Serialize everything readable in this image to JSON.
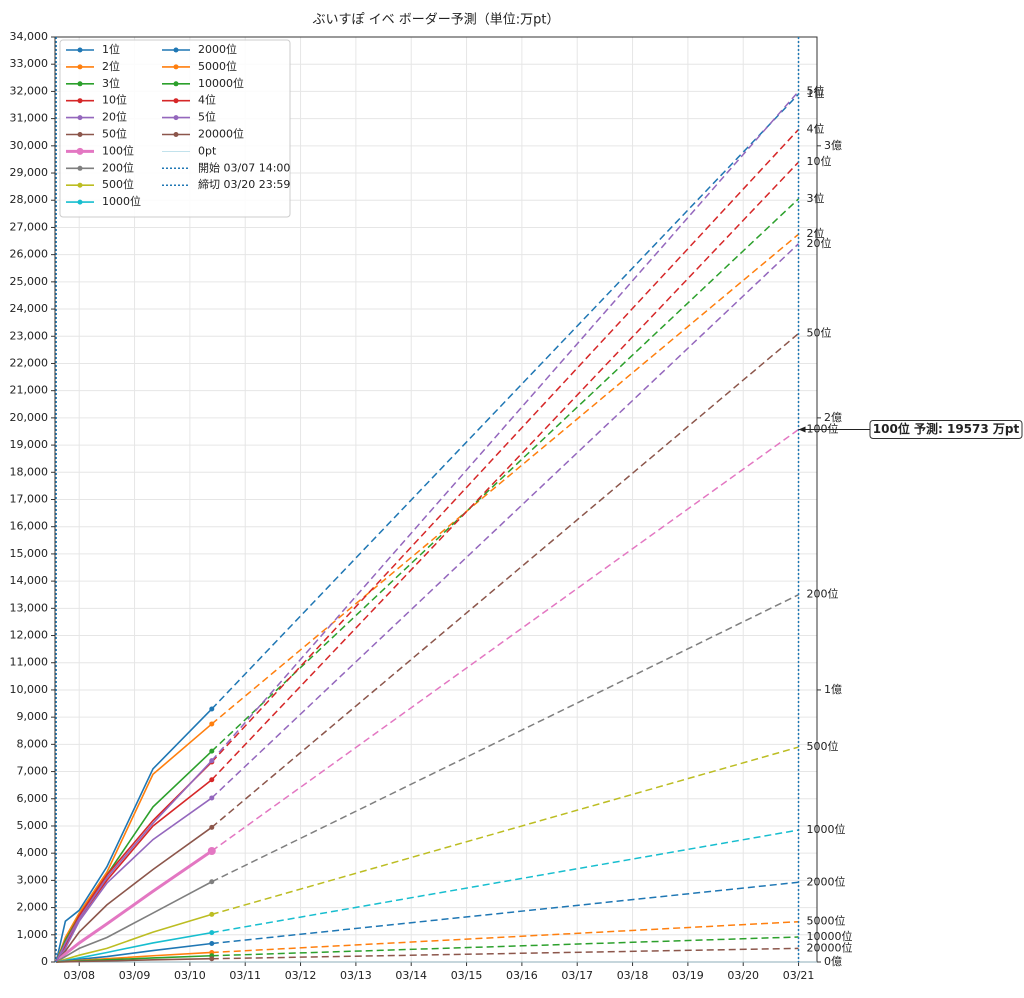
{
  "chart_data": {
    "type": "line",
    "title": "ぶいすぽ イベ ボーダー予測（単位:万pt）",
    "x": [
      "03/07 14:00",
      "03/07 18:00",
      "03/08 00:00",
      "03/08 12:00",
      "03/09 08:00",
      "03/10 09:30"
    ],
    "forecast_x": "03/20 23:59",
    "xlim": [
      "03/07 13:30",
      "03/21 08:00"
    ],
    "xticks": [
      "03/08",
      "03/09",
      "03/10",
      "03/11",
      "03/12",
      "03/13",
      "03/14",
      "03/15",
      "03/16",
      "03/17",
      "03/18",
      "03/19",
      "03/20",
      "03/21"
    ],
    "ylim": [
      0,
      34000
    ],
    "yticks": [
      0,
      {
        "value": 1000,
        "label": "1,000"
      },
      {
        "value": 2000,
        "label": "2,000"
      },
      {
        "value": 3000,
        "label": "3,000"
      },
      {
        "value": 4000,
        "label": "4,000"
      },
      {
        "value": 5000,
        "label": "5,000"
      },
      {
        "value": 6000,
        "label": "6,000"
      },
      {
        "value": 7000,
        "label": "7,000"
      },
      {
        "value": 8000,
        "label": "8,000"
      },
      {
        "value": 9000,
        "label": "9,000"
      },
      {
        "value": 10000,
        "label": "10,000"
      },
      {
        "value": 11000,
        "label": "11,000"
      },
      {
        "value": 12000,
        "label": "12,000"
      },
      {
        "value": 13000,
        "label": "13,000"
      },
      {
        "value": 14000,
        "label": "14,000"
      },
      {
        "value": 15000,
        "label": "15,000"
      },
      {
        "value": 16000,
        "label": "16,000"
      },
      {
        "value": 17000,
        "label": "17,000"
      },
      {
        "value": 18000,
        "label": "18,000"
      },
      {
        "value": 19000,
        "label": "19,000"
      },
      {
        "value": 20000,
        "label": "20,000"
      },
      {
        "value": 21000,
        "label": "21,000"
      },
      {
        "value": 22000,
        "label": "22,000"
      },
      {
        "value": 23000,
        "label": "23,000"
      },
      {
        "value": 24000,
        "label": "24,000"
      },
      {
        "value": 25000,
        "label": "25,000"
      },
      {
        "value": 26000,
        "label": "26,000"
      },
      {
        "value": 27000,
        "label": "27,000"
      },
      {
        "value": 28000,
        "label": "28,000"
      },
      {
        "value": 29000,
        "label": "29,000"
      },
      {
        "value": 30000,
        "label": "30,000"
      },
      {
        "value": 31000,
        "label": "31,000"
      },
      {
        "value": 32000,
        "label": "32,000"
      },
      {
        "value": 33000,
        "label": "33,000"
      },
      {
        "value": 34000,
        "label": "34,000"
      }
    ],
    "y2lim": [
      0,
      34000
    ],
    "y2ticks": [
      {
        "value": 0,
        "label": "0億"
      },
      {
        "value": 10000,
        "label": "1億"
      },
      {
        "value": 20000,
        "label": "2億"
      },
      {
        "value": 30000,
        "label": "3億"
      }
    ],
    "grid": true,
    "legend": "upper left",
    "series": [
      {
        "name": "1位",
        "color": "#1f77b4",
        "values": [
          0,
          1500,
          1900,
          3500,
          7100,
          9300
        ],
        "forecast": 31900
      },
      {
        "name": "2位",
        "color": "#ff7f0e",
        "values": [
          0,
          900,
          1800,
          3300,
          6900,
          8750
        ],
        "forecast": 26750
      },
      {
        "name": "3位",
        "color": "#2ca02c",
        "values": [
          0,
          800,
          1700,
          3200,
          5700,
          7750
        ],
        "forecast": 28050
      },
      {
        "name": "10位",
        "color": "#d62728",
        "values": [
          0,
          600,
          1600,
          3000,
          5000,
          6700
        ],
        "forecast": 29400
      },
      {
        "name": "20位",
        "color": "#9467bd",
        "values": [
          0,
          500,
          1500,
          2900,
          4500,
          6030
        ],
        "forecast": 26400
      },
      {
        "name": "50位",
        "color": "#8c564b",
        "values": [
          0,
          400,
          1100,
          2100,
          3400,
          4950
        ],
        "forecast": 23100
      },
      {
        "name": "100位",
        "color": "#e377c2",
        "values": [
          0,
          300,
          700,
          1400,
          2600,
          4080
        ],
        "forecast": 19573
      },
      {
        "name": "200位",
        "color": "#7f7f7f",
        "values": [
          0,
          200,
          500,
          900,
          1800,
          2950
        ],
        "forecast": 13500
      },
      {
        "name": "500位",
        "color": "#bcbd22",
        "values": [
          0,
          100,
          250,
          500,
          1100,
          1750
        ],
        "forecast": 7900
      },
      {
        "name": "1000位",
        "color": "#17becf",
        "values": [
          0,
          60,
          150,
          350,
          700,
          1080
        ],
        "forecast": 4850
      },
      {
        "name": "2000位",
        "color": "#1f77b4",
        "values": [
          0,
          40,
          100,
          200,
          420,
          680
        ],
        "forecast": 2930
      },
      {
        "name": "5000位",
        "color": "#ff7f0e",
        "values": [
          0,
          20,
          60,
          120,
          230,
          350
        ],
        "forecast": 1480
      },
      {
        "name": "10000位",
        "color": "#2ca02c",
        "values": [
          0,
          10,
          40,
          80,
          150,
          230
        ],
        "forecast": 920
      },
      {
        "name": "4位",
        "color": "#d62728",
        "values": [
          0,
          700,
          1700,
          3200,
          5200,
          7350
        ],
        "forecast": 30600
      },
      {
        "name": "5位",
        "color": "#9467bd",
        "values": [
          0,
          700,
          1600,
          3100,
          5100,
          7400
        ],
        "forecast": 32000
      },
      {
        "name": "20000位",
        "color": "#8c564b",
        "values": [
          0,
          5,
          20,
          40,
          80,
          120
        ],
        "forecast": 500
      }
    ],
    "hlines": [
      {
        "name": "0pt",
        "y": 0,
        "color": "#add8e6"
      }
    ],
    "vlines": [
      {
        "name": "開始 03/07 14:00",
        "x": "03/07 14:00",
        "color": "#1f77b4"
      },
      {
        "name": "締切 03/20 23:59",
        "x": "03/20 23:59",
        "color": "#1f77b4"
      }
    ],
    "annotation": "100位 予測: 19573 万pt"
  }
}
